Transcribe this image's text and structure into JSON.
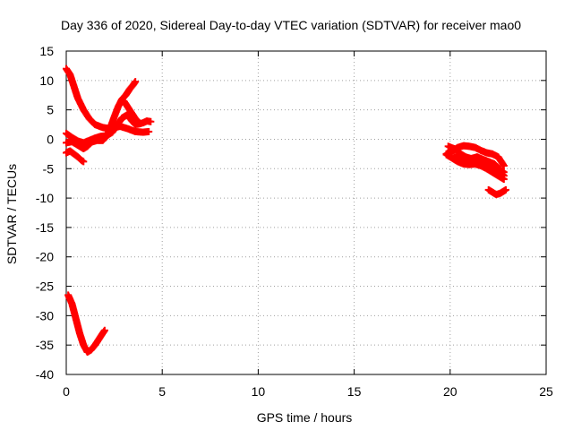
{
  "chart_data": {
    "type": "scatter",
    "title": "Day 336 of 2020, Sidereal Day-to-day VTEC variation (SDTVAR) for receiver mao0",
    "xlabel": "GPS time / hours",
    "ylabel": "SDTVAR / TECUs",
    "xlim": [
      0,
      25
    ],
    "ylim": [
      -40,
      15
    ],
    "xticks": [
      0,
      5,
      10,
      15,
      20,
      25
    ],
    "yticks": [
      15,
      10,
      5,
      0,
      -5,
      -10,
      -15,
      -20,
      -25,
      -30,
      -35,
      -40
    ],
    "grid": true,
    "legend": "none",
    "marker_color": "#ff0000",
    "series": [
      {
        "segments": [
          [
            [
              0.0,
              12.0
            ],
            [
              0.2,
              11.0
            ],
            [
              0.4,
              9.0
            ],
            [
              0.6,
              7.0
            ],
            [
              0.9,
              5.0
            ],
            [
              1.2,
              3.5
            ],
            [
              1.5,
              2.5
            ],
            [
              1.9,
              2.0
            ],
            [
              2.3,
              1.8
            ],
            [
              2.8,
              2.2
            ],
            [
              3.2,
              1.8
            ],
            [
              3.6,
              1.3
            ],
            [
              4.0,
              1.2
            ],
            [
              4.3,
              1.3
            ]
          ],
          [
            [
              0.0,
              1.0
            ],
            [
              0.3,
              0.3
            ],
            [
              0.6,
              -0.3
            ],
            [
              0.9,
              -0.6
            ],
            [
              1.2,
              -0.2
            ],
            [
              1.5,
              0.2
            ],
            [
              1.8,
              0.5
            ],
            [
              2.1,
              0.6
            ],
            [
              2.4,
              1.2
            ],
            [
              2.7,
              2.6
            ],
            [
              2.9,
              3.6
            ],
            [
              3.2,
              4.2
            ],
            [
              3.4,
              3.2
            ],
            [
              3.6,
              2.5
            ],
            [
              3.8,
              2.6
            ],
            [
              4.0,
              2.8
            ],
            [
              4.2,
              3.1
            ],
            [
              4.4,
              3.0
            ]
          ],
          [
            [
              0.0,
              -0.6
            ],
            [
              0.3,
              -0.4
            ],
            [
              0.6,
              -1.0
            ],
            [
              0.9,
              -1.6
            ],
            [
              1.1,
              -1.2
            ],
            [
              1.3,
              -0.5
            ],
            [
              1.6,
              -0.2
            ],
            [
              1.9,
              -0.2
            ],
            [
              2.1,
              0.5
            ],
            [
              2.3,
              2.0
            ],
            [
              2.5,
              3.8
            ],
            [
              2.7,
              5.5
            ],
            [
              2.9,
              6.8
            ],
            [
              3.1,
              7.5
            ],
            [
              3.3,
              8.5
            ],
            [
              3.5,
              9.3
            ],
            [
              3.6,
              9.8
            ]
          ],
          [
            [
              3.0,
              6.5
            ],
            [
              3.2,
              5.5
            ],
            [
              3.4,
              4.5
            ],
            [
              3.6,
              3.5
            ],
            [
              3.8,
              2.8
            ]
          ],
          [
            [
              0.0,
              -2.3
            ],
            [
              0.2,
              -2.0
            ],
            [
              0.4,
              -2.5
            ],
            [
              0.6,
              -3.0
            ],
            [
              0.8,
              -3.6
            ],
            [
              0.9,
              -3.8
            ]
          ],
          [
            [
              0.1,
              -26.5
            ],
            [
              0.3,
              -28.0
            ],
            [
              0.5,
              -30.5
            ],
            [
              0.7,
              -33.0
            ],
            [
              0.9,
              -35.0
            ],
            [
              1.1,
              -36.2
            ],
            [
              1.3,
              -35.8
            ],
            [
              1.5,
              -35.0
            ],
            [
              1.7,
              -34.0
            ],
            [
              1.9,
              -33.0
            ],
            [
              2.0,
              -32.5
            ]
          ],
          [
            [
              19.8,
              -2.5
            ],
            [
              20.1,
              -2.0
            ],
            [
              20.4,
              -1.4
            ],
            [
              20.7,
              -1.1
            ],
            [
              21.0,
              -1.2
            ],
            [
              21.3,
              -1.4
            ],
            [
              21.6,
              -1.9
            ],
            [
              21.9,
              -2.3
            ],
            [
              22.2,
              -2.5
            ],
            [
              22.5,
              -3.0
            ],
            [
              22.8,
              -4.5
            ]
          ],
          [
            [
              19.8,
              -2.6
            ],
            [
              20.1,
              -3.2
            ],
            [
              20.4,
              -3.8
            ],
            [
              20.7,
              -4.2
            ],
            [
              21.0,
              -4.3
            ],
            [
              21.3,
              -4.2
            ],
            [
              21.6,
              -4.5
            ],
            [
              21.9,
              -5.0
            ],
            [
              22.2,
              -5.6
            ],
            [
              22.5,
              -6.2
            ],
            [
              22.8,
              -6.8
            ]
          ],
          [
            [
              19.9,
              -1.2
            ],
            [
              20.2,
              -1.6
            ],
            [
              20.5,
              -2.4
            ],
            [
              20.8,
              -3.0
            ],
            [
              21.1,
              -3.3
            ],
            [
              21.4,
              -3.0
            ],
            [
              21.7,
              -3.4
            ],
            [
              22.0,
              -3.8
            ],
            [
              22.3,
              -4.2
            ],
            [
              22.6,
              -5.2
            ],
            [
              22.8,
              -5.6
            ]
          ],
          [
            [
              20.2,
              -3.0
            ],
            [
              20.5,
              -3.3
            ],
            [
              20.8,
              -3.6
            ],
            [
              21.2,
              -3.2
            ],
            [
              21.6,
              -3.5
            ],
            [
              22.0,
              -4.3
            ],
            [
              22.3,
              -5.0
            ],
            [
              22.6,
              -5.6
            ],
            [
              22.8,
              -6.2
            ]
          ],
          [
            [
              22.0,
              -8.6
            ],
            [
              22.2,
              -9.0
            ],
            [
              22.4,
              -9.4
            ],
            [
              22.6,
              -9.2
            ],
            [
              22.8,
              -8.8
            ],
            [
              22.9,
              -8.6
            ]
          ]
        ]
      }
    ]
  }
}
